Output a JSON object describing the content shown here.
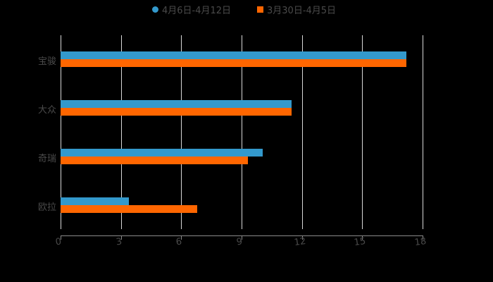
{
  "chart_data": {
    "type": "bar",
    "orientation": "horizontal",
    "title": "",
    "categories": [
      "宝骏",
      "大众",
      "奇瑞",
      "欧拉"
    ],
    "series": [
      {
        "name": "4月6日-4月12日",
        "color": "#3399cc",
        "marker": "circle",
        "values": [
          17.2,
          11.5,
          10.05,
          3.4
        ]
      },
      {
        "name": "3月30日-4月5日",
        "color": "#ff6600",
        "marker": "square",
        "values": [
          17.2,
          11.5,
          9.3,
          6.8
        ]
      }
    ],
    "xlabel": "",
    "ylabel": "",
    "xlim": [
      0,
      18
    ],
    "xticks": [
      "0",
      "3",
      "6",
      "9",
      "12",
      "15",
      "18"
    ],
    "grid": true,
    "legend_position": "top"
  },
  "legend": [
    {
      "label": "4月6日-4月12日",
      "color": "#3399cc"
    },
    {
      "label": "3月30日-4月5日",
      "color": "#ff6600"
    }
  ]
}
